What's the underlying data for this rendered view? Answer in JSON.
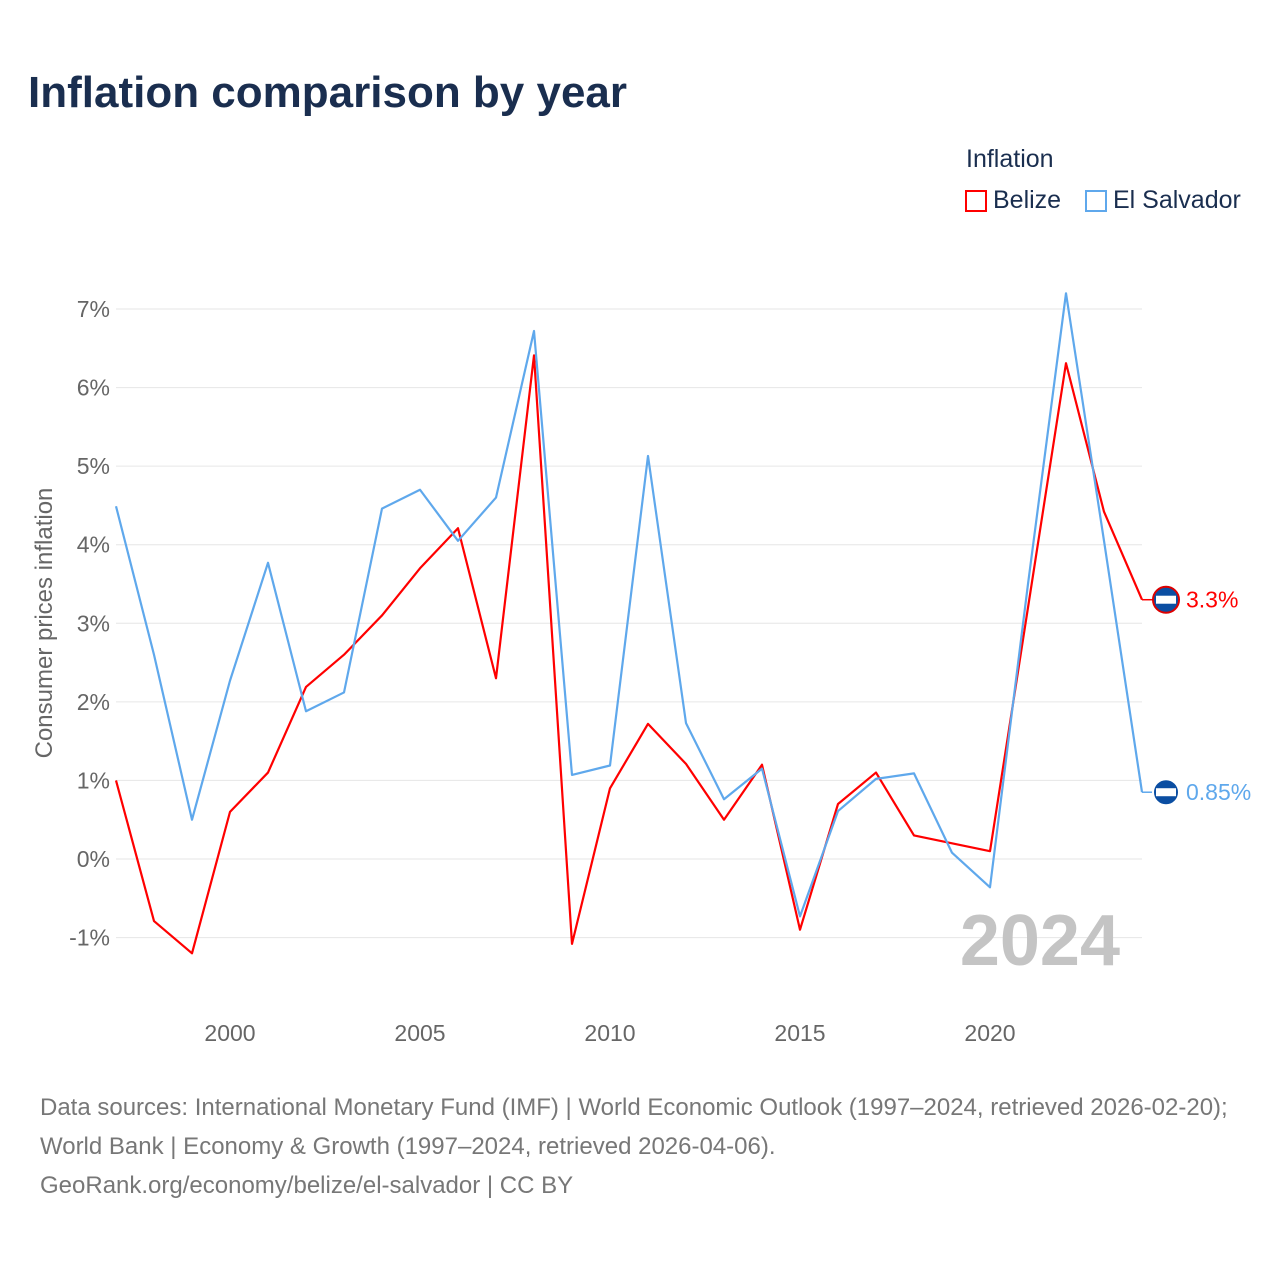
{
  "title": "Inflation comparison by year",
  "legend": {
    "title": "Inflation",
    "items": [
      "Belize",
      "El Salvador"
    ]
  },
  "footer": {
    "line1": "Data sources: International Monetary Fund (IMF) | World Economic Outlook (1997–2024, retrieved 2026-02-20); World Bank | Economy & Growth (1997–2024, retrieved 2026-04-06).",
    "line2": "GeoRank.org/economy/belize/el-salvador | CC BY"
  },
  "chart_data": {
    "type": "line",
    "title": "Inflation comparison by year",
    "ylabel": "Consumer prices inflation",
    "xlabel": "",
    "year_label": "2024",
    "ylim": [
      -1.5,
      7.2
    ],
    "xlim": [
      1997,
      2024
    ],
    "yticks": [
      -1,
      0,
      1,
      2,
      3,
      4,
      5,
      6,
      7
    ],
    "ytick_labels": [
      "-1%",
      "0%",
      "1%",
      "2%",
      "3%",
      "4%",
      "5%",
      "6%",
      "7%"
    ],
    "xticks": [
      2000,
      2005,
      2010,
      2015,
      2020
    ],
    "xtick_labels": [
      "2000",
      "2005",
      "2010",
      "2015",
      "2020"
    ],
    "x": [
      1997,
      1998,
      1999,
      2000,
      2001,
      2002,
      2003,
      2004,
      2005,
      2006,
      2007,
      2008,
      2009,
      2010,
      2011,
      2012,
      2013,
      2014,
      2015,
      2016,
      2017,
      2018,
      2019,
      2020,
      2021,
      2022,
      2023,
      2024
    ],
    "series": [
      {
        "name": "Belize",
        "color": "#ff0000",
        "end_label": "3.3%",
        "values": [
          1.0,
          -0.79,
          -1.2,
          0.6,
          1.1,
          2.19,
          2.6,
          3.1,
          3.7,
          4.21,
          2.3,
          6.41,
          -1.08,
          0.9,
          1.72,
          1.21,
          0.5,
          1.2,
          -0.9,
          0.7,
          1.1,
          0.3,
          0.2,
          0.1,
          3.2,
          6.31,
          4.42,
          3.3
        ]
      },
      {
        "name": "El Salvador",
        "color": "#5fa8ec",
        "end_label": "0.85%",
        "values": [
          4.49,
          2.6,
          0.5,
          2.27,
          3.77,
          1.88,
          2.12,
          4.46,
          4.7,
          4.05,
          4.6,
          6.72,
          1.07,
          1.19,
          5.13,
          1.73,
          0.76,
          1.15,
          -0.73,
          0.61,
          1.02,
          1.09,
          0.08,
          -0.36,
          3.5,
          7.2,
          4.05,
          0.85
        ]
      }
    ]
  }
}
